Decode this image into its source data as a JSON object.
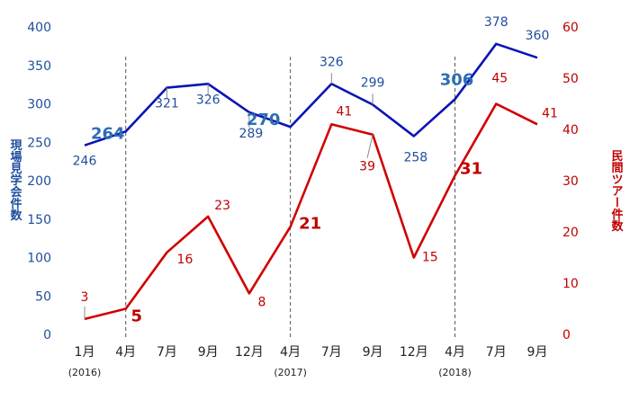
{
  "chart_data": {
    "type": "line",
    "categories": [
      "1月",
      "4月",
      "7月",
      "9月",
      "12月",
      "4月",
      "7月",
      "9月",
      "12月",
      "4月",
      "7月",
      "9月"
    ],
    "year_labels": [
      {
        "index": 0,
        "text": "(2016)"
      },
      {
        "index": 5,
        "text": "(2017)"
      },
      {
        "index": 9,
        "text": "(2018)"
      }
    ],
    "divider_indices": [
      1,
      5,
      9
    ],
    "ylabel": "現場見学会件数",
    "ylabel_right": "民間ツアー件数",
    "ylim": [
      0,
      400
    ],
    "y_ticks": [
      0,
      50,
      100,
      150,
      200,
      250,
      300,
      350,
      400
    ],
    "ylim_right": [
      0,
      60
    ],
    "y_ticks_right": [
      0,
      10,
      20,
      30,
      40,
      50,
      60
    ],
    "grid": false,
    "series": [
      {
        "axis": "left",
        "color": "#0a14b4",
        "values": [
          246,
          264,
          321,
          326,
          289,
          270,
          326,
          299,
          258,
          306,
          378,
          360
        ],
        "emphasized": [
          1,
          5,
          9
        ]
      },
      {
        "axis": "right",
        "color": "#d00000",
        "values": [
          3,
          5,
          16,
          23,
          8,
          21,
          41,
          39,
          15,
          31,
          45,
          41
        ],
        "emphasized": [
          1,
          5,
          9
        ]
      }
    ]
  }
}
